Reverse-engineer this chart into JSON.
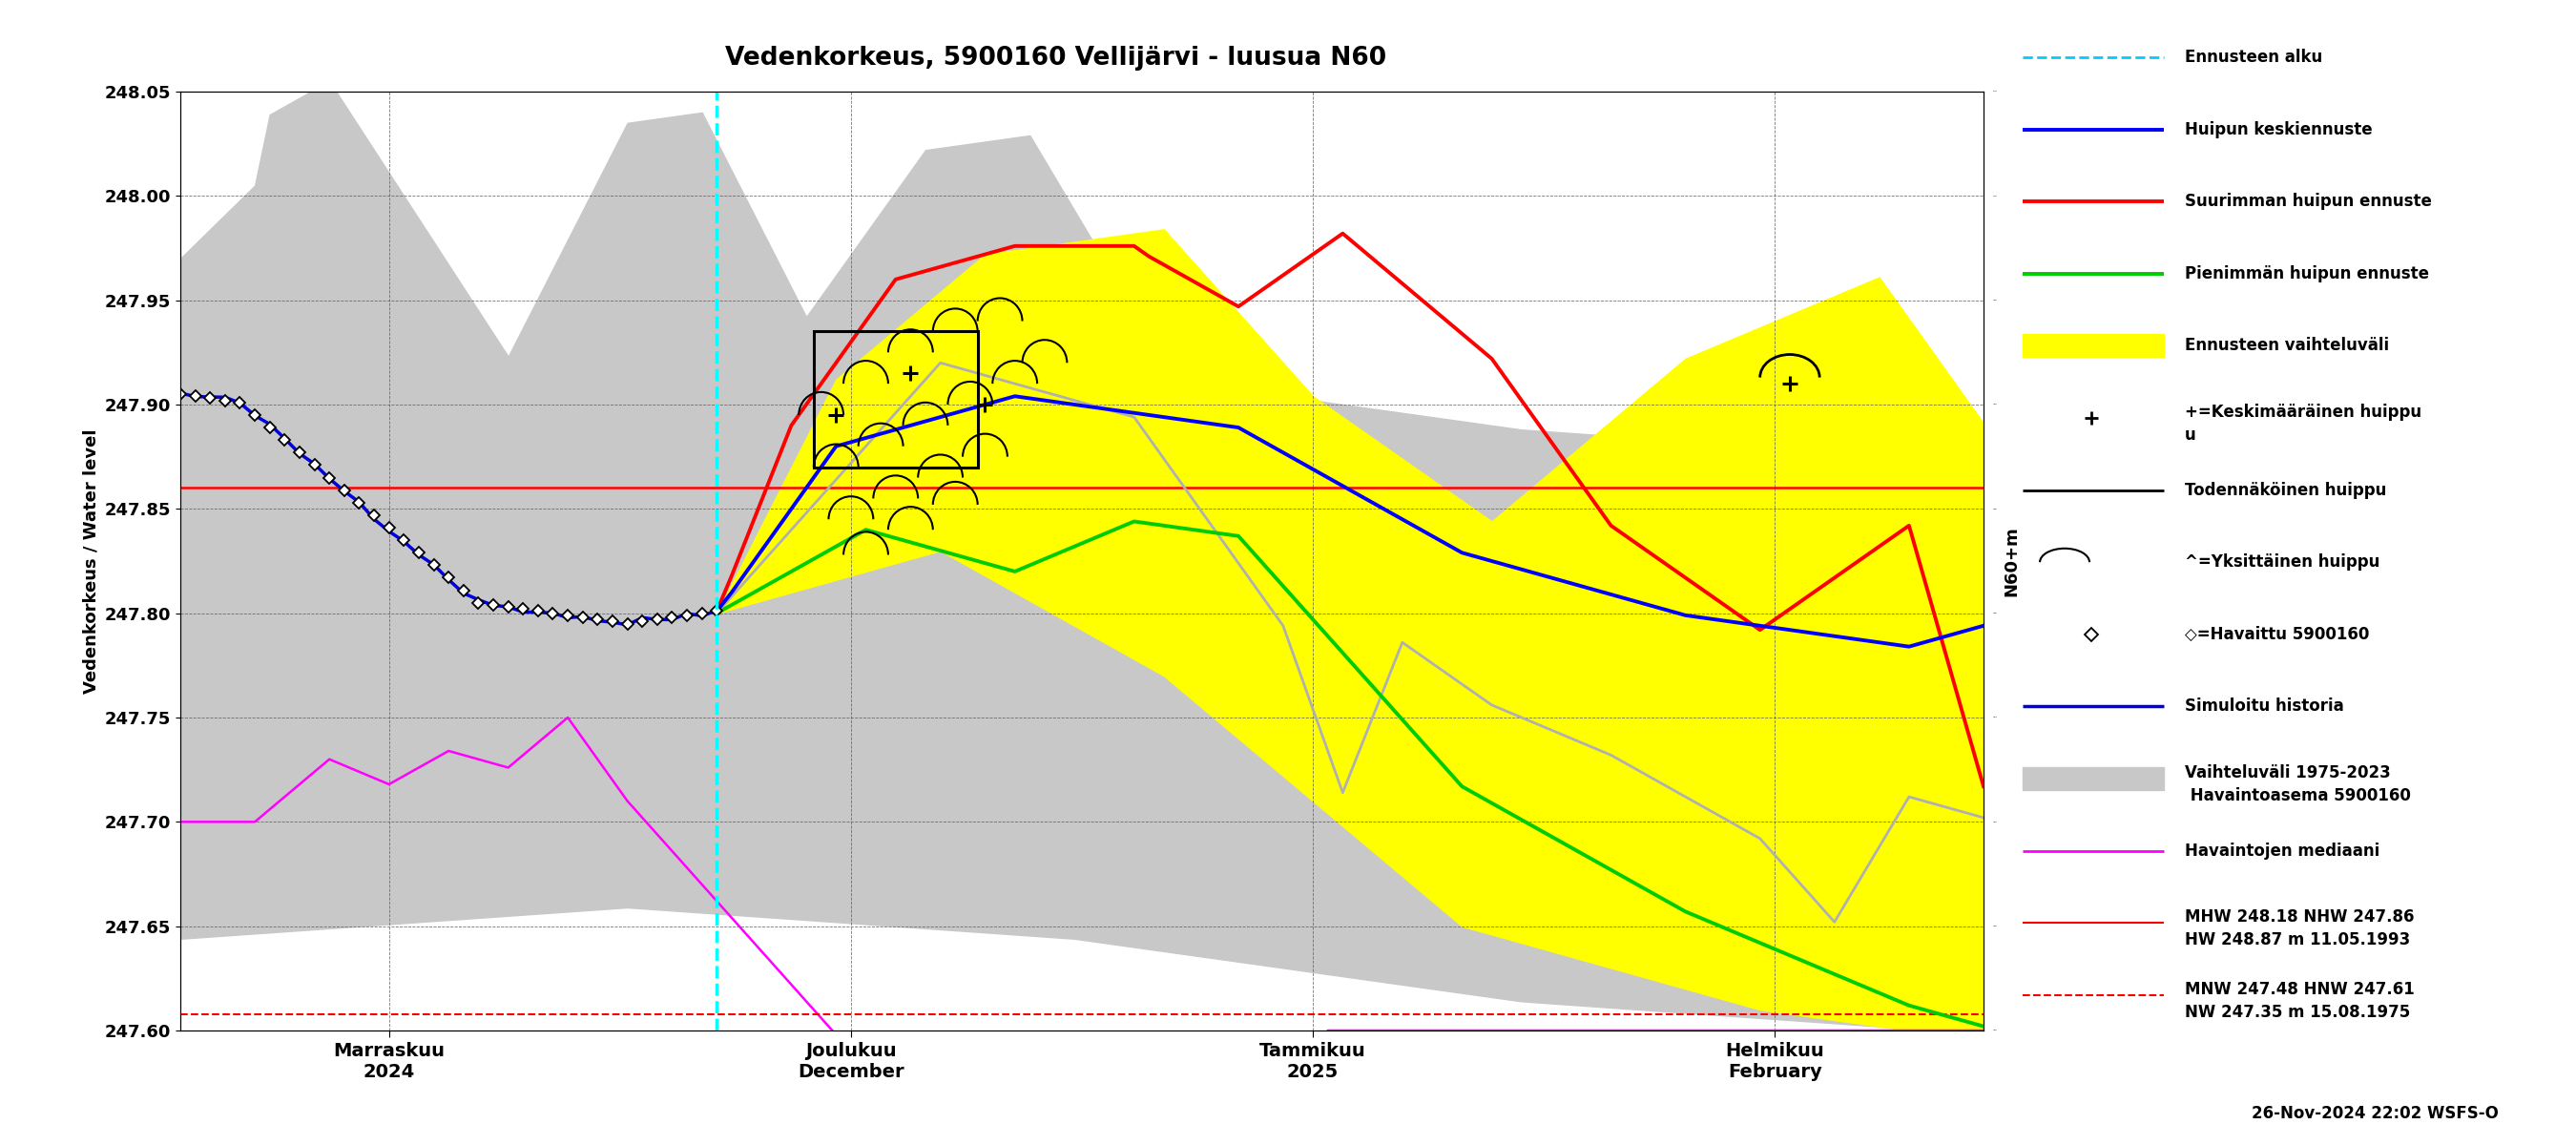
{
  "title": "Vedenkorkeus, 5900160 Vellijärvi - luusua N60",
  "ylabel": "Vedenkorkeus / Water level",
  "ylabel2": "N60+m",
  "ylim": [
    247.6,
    248.05
  ],
  "yticks": [
    247.6,
    247.65,
    247.7,
    247.75,
    247.8,
    247.85,
    247.9,
    247.95,
    248.0,
    248.05
  ],
  "xlim": [
    0,
    121
  ],
  "forecast_start_x": 36,
  "hline_red_solid": 247.86,
  "hline_red_dashed": 247.608,
  "date_labels": [
    {
      "label": "Marraskuu\n2024",
      "x": 14
    },
    {
      "label": "Joulukuu\nDecember",
      "x": 45
    },
    {
      "label": "Tammikuu\n2025",
      "x": 76
    },
    {
      "label": "Helmikuu\nFebruary",
      "x": 107
    }
  ],
  "timestamp": "26-Nov-2024 22:02 WSFS-O",
  "legend_labels": [
    "Ennusteen alku",
    "Huipun keskiennuste",
    "Suurimman huipun ennuste",
    "Pienimmän huipun ennuste",
    "Ennusteen vaihteluväli",
    "+=Keskimääräinen huippu\nu",
    "Todennäköinen huippu",
    "^=Yksittäinen huippu",
    "◇=Havaittu 5900160",
    "Simuloitu historia",
    "Vaihteluväli 1975-2023\n Havaintoasema 5900160",
    "Havaintojen mediaani",
    "MHW 248.18 NHW 247.86\nHW 248.87 m 11.05.1993",
    "MNW 247.48 HNW 247.61\nNW 247.35 m 15.08.1975"
  ]
}
